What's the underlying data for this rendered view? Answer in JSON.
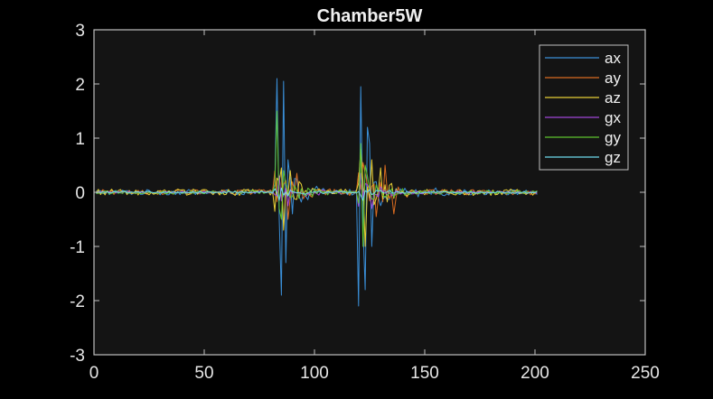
{
  "chart_data": {
    "type": "line",
    "title": "Chamber5W",
    "xlabel": "",
    "ylabel": "",
    "xlim": [
      0,
      250
    ],
    "ylim": [
      -3,
      3
    ],
    "xticks": [
      "0",
      "50",
      "100",
      "150",
      "200",
      "250"
    ],
    "yticks": [
      "3",
      "2",
      "1",
      "0",
      "-1",
      "-2",
      "-3"
    ],
    "grid": false,
    "legend_position": "top-right",
    "background": "#141414",
    "x_start": 1,
    "x_end": 201,
    "bursts": [
      {
        "start": 82,
        "end": 118
      },
      {
        "start": 120,
        "end": 160
      }
    ],
    "series": [
      {
        "name": "ax",
        "color": "#3a8fd8",
        "noise": 0.05,
        "burst_amp": 0.55,
        "spikes": [
          [
            83,
            2.1
          ],
          [
            84,
            -0.5
          ],
          [
            85,
            -1.9
          ],
          [
            86,
            2.05
          ],
          [
            87,
            -1.3
          ],
          [
            88,
            0.6
          ],
          [
            90,
            -0.4
          ],
          [
            120,
            -2.1
          ],
          [
            121,
            1.95
          ],
          [
            122,
            -0.6
          ],
          [
            123,
            -1.8
          ],
          [
            124,
            1.2
          ],
          [
            125,
            0.9
          ],
          [
            126,
            -1.0
          ]
        ]
      },
      {
        "name": "ay",
        "color": "#d96b20",
        "noise": 0.05,
        "burst_amp": 0.45,
        "spikes": [
          [
            84,
            0.3
          ],
          [
            88,
            -0.5
          ],
          [
            92,
            0.35
          ],
          [
            122,
            0.55
          ],
          [
            128,
            -0.45
          ],
          [
            132,
            0.5
          ],
          [
            136,
            -0.4
          ]
        ]
      },
      {
        "name": "az",
        "color": "#e8cf36",
        "noise": 0.06,
        "burst_amp": 0.45,
        "spikes": [
          [
            85,
            0.45
          ],
          [
            86,
            -0.7
          ],
          [
            89,
            0.4
          ],
          [
            121,
            0.8
          ],
          [
            123,
            -1.0
          ],
          [
            126,
            0.6
          ],
          [
            130,
            0.45
          ]
        ]
      },
      {
        "name": "gx",
        "color": "#a146d8",
        "noise": 0.02,
        "burst_amp": 0.25,
        "spikes": [
          [
            84,
            0.3
          ],
          [
            88,
            -0.25
          ],
          [
            121,
            0.35
          ],
          [
            126,
            -0.3
          ]
        ]
      },
      {
        "name": "gy",
        "color": "#5ec42f",
        "noise": 0.03,
        "burst_amp": 0.3,
        "spikes": [
          [
            83,
            1.5
          ],
          [
            84,
            -0.3
          ],
          [
            85,
            -0.5
          ],
          [
            86,
            0.4
          ],
          [
            120,
            -0.2
          ],
          [
            121,
            0.9
          ],
          [
            122,
            -1.0
          ],
          [
            123,
            0.5
          ],
          [
            124,
            0.3
          ]
        ]
      },
      {
        "name": "gz",
        "color": "#6ed9ec",
        "noise": 0.02,
        "burst_amp": 0.1,
        "spikes": [
          [
            84,
            -0.15
          ],
          [
            122,
            -0.15
          ]
        ]
      }
    ]
  }
}
